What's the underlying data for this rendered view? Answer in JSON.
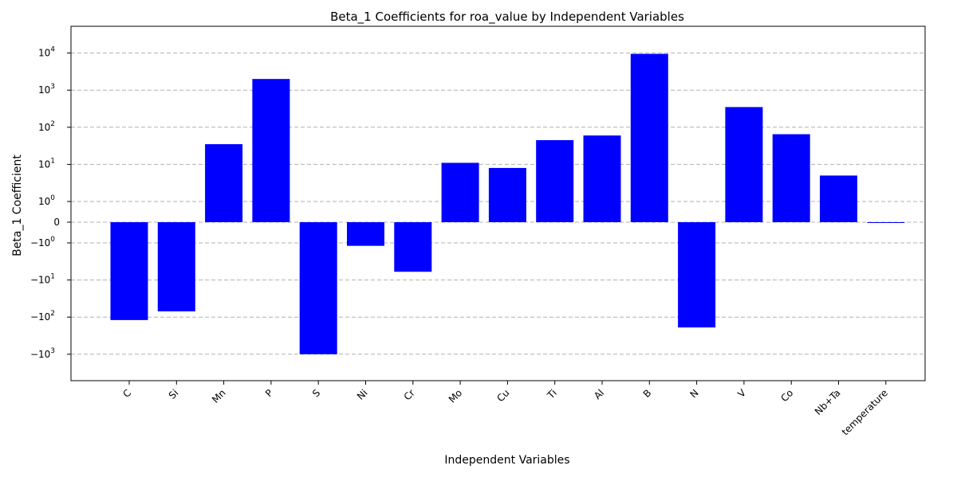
{
  "chart_data": {
    "type": "bar",
    "title": "Beta_1 Coefficients for roa_value by Independent Variables",
    "xlabel": "Independent Variables",
    "ylabel": "Beta_1 Coefficient",
    "yscale": "symlog",
    "ylim": [
      -2000,
      25000
    ],
    "grid": "y-dashed",
    "bar_color": "#0000ff",
    "categories": [
      "C",
      "Si",
      "Mn",
      "P",
      "S",
      "Ni",
      "Cr",
      "Mo",
      "Cu",
      "Ti",
      "Al",
      "B",
      "N",
      "V",
      "Co",
      "Nb+Ta",
      "temperature"
    ],
    "values": [
      -120,
      -70,
      35,
      2000,
      -1000,
      -1.2,
      -6,
      11,
      8,
      45,
      60,
      9500,
      -190,
      350,
      65,
      5,
      -0.01
    ],
    "y_ticks": [
      {
        "value": -1000,
        "base": "−10",
        "exp": "3"
      },
      {
        "value": -100,
        "base": "−10",
        "exp": "2"
      },
      {
        "value": -10,
        "base": "−10",
        "exp": "1"
      },
      {
        "value": -1,
        "base": "−10",
        "exp": "0"
      },
      {
        "value": 0,
        "base": "0",
        "exp": ""
      },
      {
        "value": 1,
        "base": "10",
        "exp": "0"
      },
      {
        "value": 10,
        "base": "10",
        "exp": "1"
      },
      {
        "value": 100,
        "base": "10",
        "exp": "2"
      },
      {
        "value": 1000,
        "base": "10",
        "exp": "3"
      },
      {
        "value": 10000,
        "base": "10",
        "exp": "4"
      }
    ]
  }
}
